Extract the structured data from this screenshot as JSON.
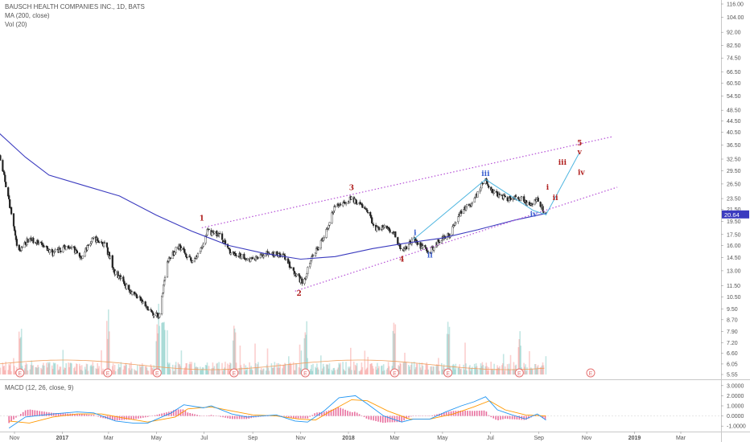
{
  "legend": {
    "symbol_line": "BAUSCH HEALTH COMPANIES INC., 1D, BATS",
    "ma_line": "MA (200, close)",
    "vol_line": "Vol (20)",
    "macd_line": "MACD (12, 26, close, 9)"
  },
  "colors": {
    "up": "#26a69a",
    "down": "#ef5350",
    "candle_body": "#222222",
    "ma": "#3b3bbf",
    "channel": "#b54fd6",
    "wave_path": "#4fb6e0",
    "wave_red": "#b0201f",
    "wave_blue": "#3a5fd0",
    "last_price_bg": "#3b3bbf",
    "macd_line": "#2196f3",
    "signal_line": "#ff9800",
    "earnings": "#e57373"
  },
  "chart_data": [
    {
      "type": "candlestick",
      "title": "BAUSCH HEALTH COMPANIES INC., 1D, BATS",
      "scale": "log",
      "y_ticks": [
        "116.00",
        "104.00",
        "92.00",
        "82.50",
        "74.50",
        "66.50",
        "60.50",
        "54.50",
        "48.50",
        "44.50",
        "40.50",
        "36.50",
        "32.50",
        "29.50",
        "26.50",
        "23.50",
        "21.50",
        "19.50",
        "17.50",
        "16.00",
        "14.50",
        "13.00",
        "11.50",
        "10.50",
        "9.50",
        "8.70",
        "7.90",
        "7.20",
        "6.60",
        "6.05",
        "5.55"
      ],
      "x_ticks": [
        "Nov",
        "2017",
        "Mar",
        "May",
        "Jul",
        "Sep",
        "Nov",
        "2018",
        "Mar",
        "May",
        "Jul",
        "Sep",
        "Nov",
        "2019",
        "Mar"
      ],
      "last_price": "20.64",
      "price_path": [
        [
          "2016-10-01",
          43
        ],
        [
          "2016-10-25",
          23
        ],
        [
          "2016-11-05",
          15
        ],
        [
          "2016-11-20",
          17
        ],
        [
          "2016-12-05",
          16
        ],
        [
          "2016-12-20",
          15
        ],
        [
          "2017-01-10",
          16
        ],
        [
          "2017-01-25",
          14.5
        ],
        [
          "2017-02-10",
          17
        ],
        [
          "2017-02-25",
          16
        ],
        [
          "2017-03-08",
          13
        ],
        [
          "2017-03-25",
          11.3
        ],
        [
          "2017-04-10",
          10.3
        ],
        [
          "2017-04-22",
          9.3
        ],
        [
          "2017-05-05",
          9.0
        ],
        [
          "2017-05-15",
          14
        ],
        [
          "2017-05-30",
          16
        ],
        [
          "2017-06-15",
          14
        ],
        [
          "2017-06-28",
          15.5
        ],
        [
          "2017-07-05",
          18
        ],
        [
          "2017-07-20",
          17.5
        ],
        [
          "2017-08-05",
          15
        ],
        [
          "2017-08-20",
          14.5
        ],
        [
          "2017-09-01",
          14.2
        ],
        [
          "2017-09-20",
          15
        ],
        [
          "2017-10-10",
          14.7
        ],
        [
          "2017-10-25",
          12.5
        ],
        [
          "2017-11-05",
          11.8
        ],
        [
          "2017-11-15",
          14.5
        ],
        [
          "2017-12-01",
          17
        ],
        [
          "2017-12-15",
          22
        ],
        [
          "2018-01-05",
          23.5
        ],
        [
          "2018-01-20",
          22
        ],
        [
          "2018-02-05",
          18.5
        ],
        [
          "2018-02-20",
          18.5
        ],
        [
          "2018-03-01",
          17.5
        ],
        [
          "2018-03-10",
          15.2
        ],
        [
          "2018-03-25",
          16.8
        ],
        [
          "2018-04-05",
          15.8
        ],
        [
          "2018-04-15",
          15.2
        ],
        [
          "2018-04-25",
          16.5
        ],
        [
          "2018-05-10",
          17.5
        ],
        [
          "2018-05-25",
          21
        ],
        [
          "2018-06-10",
          23
        ],
        [
          "2018-06-20",
          26.2
        ],
        [
          "2018-06-25",
          27.5
        ],
        [
          "2018-07-05",
          24.5
        ],
        [
          "2018-07-25",
          23.5
        ],
        [
          "2018-08-10",
          23.5
        ],
        [
          "2018-08-20",
          22
        ],
        [
          "2018-08-30",
          23.5
        ],
        [
          "2018-09-10",
          20.6
        ]
      ],
      "ma_path": [
        [
          "2016-10-01",
          43
        ],
        [
          "2016-11-15",
          33
        ],
        [
          "2016-12-15",
          28.5
        ],
        [
          "2017-02-01",
          26
        ],
        [
          "2017-03-15",
          24
        ],
        [
          "2017-05-01",
          20.5
        ],
        [
          "2017-06-15",
          18
        ],
        [
          "2017-08-01",
          16
        ],
        [
          "2017-09-15",
          15
        ],
        [
          "2017-11-01",
          14.3
        ],
        [
          "2017-12-15",
          14.6
        ],
        [
          "2018-02-01",
          15.6
        ],
        [
          "2018-03-15",
          16.3
        ],
        [
          "2018-05-01",
          17
        ],
        [
          "2018-06-15",
          18.2
        ],
        [
          "2018-08-01",
          19.7
        ],
        [
          "2018-09-10",
          20.8
        ]
      ],
      "channel_upper": [
        [
          "2017-06-28",
          18.5
        ],
        [
          "2018-11-05",
          37.5
        ]
      ],
      "channel_lower": [
        [
          "2017-10-25",
          11.0
        ],
        [
          "2018-11-15",
          24.5
        ]
      ],
      "wave_projection": [
        [
          "2018-03-25",
          16.8
        ],
        [
          "2018-06-25",
          27.5
        ],
        [
          "2018-08-25",
          21.3
        ],
        [
          "2018-09-10",
          20.6
        ],
        [
          "2018-10-22",
          34
        ]
      ],
      "wave_labels": [
        {
          "text": "1",
          "date": "2017-06-28",
          "price": 19.6,
          "color": "red"
        },
        {
          "text": "2",
          "date": "2017-10-30",
          "price": 10.6,
          "color": "red"
        },
        {
          "text": "3",
          "date": "2018-01-05",
          "price": 25.2,
          "color": "red"
        },
        {
          "text": "4",
          "date": "2018-03-10",
          "price": 14.0,
          "color": "red"
        },
        {
          "text": "i",
          "date": "2018-03-27",
          "price": 17.4,
          "color": "blue"
        },
        {
          "text": "ii",
          "date": "2018-04-15",
          "price": 14.5,
          "color": "blue"
        },
        {
          "text": "iii",
          "date": "2018-06-25",
          "price": 28.3,
          "color": "blue"
        },
        {
          "text": "iv",
          "date": "2018-08-25",
          "price": 20.3,
          "color": "blue"
        },
        {
          "text": "i",
          "date": "2018-09-12",
          "price": 25.3,
          "color": "red"
        },
        {
          "text": "ii",
          "date": "2018-09-22",
          "price": 23.2,
          "color": "red"
        },
        {
          "text": "iii",
          "date": "2018-10-01",
          "price": 31.0,
          "color": "red"
        },
        {
          "text": "iv",
          "date": "2018-10-25",
          "price": 28.6,
          "color": "red"
        },
        {
          "text": "5",
          "date": "2018-10-23",
          "price": 36.3,
          "color": "red"
        },
        {
          "text": "v",
          "date": "2018-10-23",
          "price": 33.8,
          "color": "red"
        }
      ],
      "earnings": [
        {
          "date": "2016-11-08",
          "label": "E"
        },
        {
          "date": "2017-02-28",
          "label": "E"
        },
        {
          "date": "2017-05-02",
          "label": "E"
        },
        {
          "date": "2017-08-08",
          "label": "E"
        },
        {
          "date": "2017-11-07",
          "label": "E"
        },
        {
          "date": "2018-03-01",
          "label": "E"
        },
        {
          "date": "2018-05-08",
          "label": "E"
        },
        {
          "date": "2018-08-07",
          "label": "E"
        },
        {
          "date": "2018-11-06",
          "label": "E"
        }
      ]
    },
    {
      "type": "line",
      "title": "MACD (12, 26, close, 9)",
      "y_ticks": [
        "3.0000",
        "2.0000",
        "1.0000",
        "0.0000",
        "-1.0000"
      ],
      "ylim": [
        -1.3,
        3.3
      ],
      "macd_path": [
        [
          "2016-10-25",
          -1.2
        ],
        [
          "2016-11-15",
          -0.1
        ],
        [
          "2016-12-20",
          0.2
        ],
        [
          "2017-01-20",
          0.4
        ],
        [
          "2017-02-10",
          0.3
        ],
        [
          "2017-03-10",
          -0.5
        ],
        [
          "2017-04-01",
          -0.7
        ],
        [
          "2017-04-20",
          -0.7
        ],
        [
          "2017-05-20",
          0.3
        ],
        [
          "2017-06-05",
          1.1
        ],
        [
          "2017-06-30",
          0.8
        ],
        [
          "2017-07-10",
          1.0
        ],
        [
          "2017-08-05",
          0.2
        ],
        [
          "2017-08-25",
          -0.1
        ],
        [
          "2017-10-01",
          0.1
        ],
        [
          "2017-10-25",
          -0.5
        ],
        [
          "2017-11-10",
          -0.6
        ],
        [
          "2017-12-01",
          0.5
        ],
        [
          "2017-12-20",
          1.8
        ],
        [
          "2018-01-10",
          2.0
        ],
        [
          "2018-01-25",
          1.2
        ],
        [
          "2018-02-15",
          0.0
        ],
        [
          "2018-03-10",
          -0.6
        ],
        [
          "2018-03-25",
          -0.3
        ],
        [
          "2018-04-15",
          -0.3
        ],
        [
          "2018-05-05",
          0.4
        ],
        [
          "2018-05-25",
          1.0
        ],
        [
          "2018-06-10",
          1.4
        ],
        [
          "2018-06-25",
          1.9
        ],
        [
          "2018-07-10",
          0.6
        ],
        [
          "2018-07-25",
          0.2
        ],
        [
          "2018-08-15",
          -0.3
        ],
        [
          "2018-08-30",
          0.2
        ],
        [
          "2018-09-10",
          -0.4
        ]
      ],
      "signal_path": [
        [
          "2016-10-25",
          -0.5
        ],
        [
          "2016-11-20",
          -0.7
        ],
        [
          "2016-12-20",
          -0.1
        ],
        [
          "2017-01-20",
          0.2
        ],
        [
          "2017-02-20",
          0.2
        ],
        [
          "2017-03-20",
          -0.2
        ],
        [
          "2017-04-20",
          -0.6
        ],
        [
          "2017-05-25",
          -0.1
        ],
        [
          "2017-06-10",
          0.7
        ],
        [
          "2017-07-10",
          0.9
        ],
        [
          "2017-08-05",
          0.5
        ],
        [
          "2017-09-01",
          0.1
        ],
        [
          "2017-10-01",
          0.0
        ],
        [
          "2017-10-30",
          -0.3
        ],
        [
          "2017-11-20",
          -0.4
        ],
        [
          "2017-12-10",
          0.5
        ],
        [
          "2018-01-05",
          1.6
        ],
        [
          "2018-01-25",
          1.5
        ],
        [
          "2018-02-20",
          0.5
        ],
        [
          "2018-03-20",
          -0.3
        ],
        [
          "2018-04-15",
          -0.3
        ],
        [
          "2018-05-15",
          0.2
        ],
        [
          "2018-06-10",
          0.9
        ],
        [
          "2018-06-30",
          1.5
        ],
        [
          "2018-07-20",
          0.6
        ],
        [
          "2018-08-15",
          0.1
        ],
        [
          "2018-09-10",
          0.0
        ]
      ]
    }
  ]
}
